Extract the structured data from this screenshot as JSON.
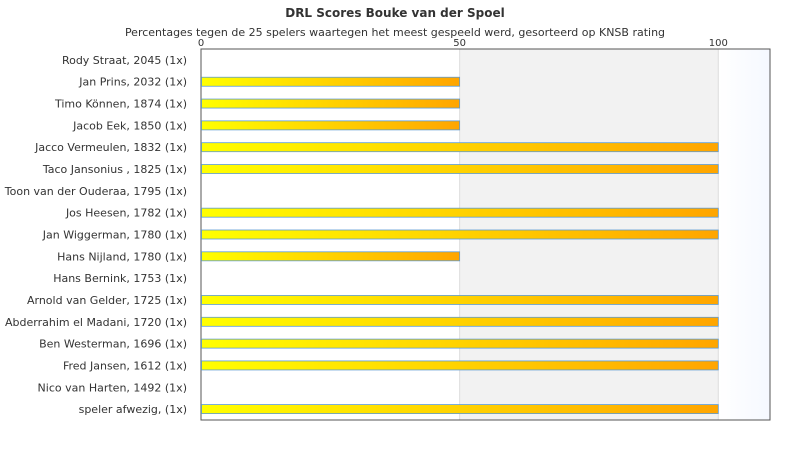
{
  "chart_data": {
    "type": "bar",
    "orientation": "horizontal",
    "title": "DRL Scores Bouke van der Spoel",
    "subtitle": "Percentages tegen de 25 spelers waartegen het meest gespeeld werd, gesorteerd op KNSB rating",
    "xlim": [
      0,
      110
    ],
    "xticks": [
      "0",
      "50",
      "100"
    ],
    "xtick_values": [
      0,
      50,
      100
    ],
    "grid": true,
    "legend": "none",
    "categories": [
      "Rody Straat, 2045 (1x)",
      "Jan Prins, 2032 (1x)",
      "Timo Können, 1874 (1x)",
      "Jacob Eek, 1850 (1x)",
      "Jacco Vermeulen, 1832 (1x)",
      "Taco Jansonius , 1825 (1x)",
      "Toon van der Ouderaa, 1795 (1x)",
      "Jos Heesen, 1782 (1x)",
      "Jan Wiggerman, 1780 (1x)",
      "Hans Nijland, 1780 (1x)",
      "Hans Bernink, 1753 (1x)",
      "Arnold van Gelder, 1725 (1x)",
      "Abderrahim el Madani, 1720 (1x)",
      "Ben Westerman, 1696 (1x)",
      "Fred Jansen, 1612 (1x)",
      "Nico van Harten, 1492 (1x)",
      "speler afwezig,  (1x)"
    ],
    "values": [
      0,
      50,
      50,
      50,
      100,
      100,
      0,
      100,
      100,
      50,
      0,
      100,
      100,
      100,
      100,
      0,
      100
    ],
    "colors": {
      "bar_start": "#ffff00",
      "bar_end": "#ffa500",
      "bar_stroke": "#5b9bd5",
      "band_alt": "#f2f2f2",
      "band_edge": "#f5f8ff",
      "grid": "#dddddd",
      "axis": "#555555"
    }
  }
}
